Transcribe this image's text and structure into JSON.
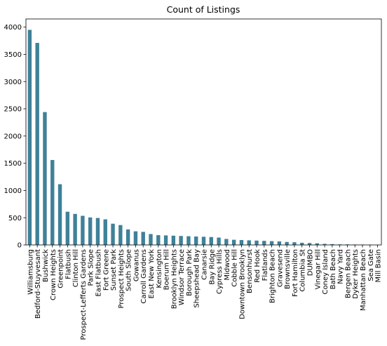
{
  "chart_data": {
    "type": "bar",
    "title": "Count of Listings",
    "xlabel": "",
    "ylabel": "",
    "ylim": [
      0,
      4150
    ],
    "yticks": [
      0,
      500,
      1000,
      1500,
      2000,
      2500,
      3000,
      3500,
      4000
    ],
    "grid": false,
    "bar_color": "#3f8198",
    "categories": [
      "Williamsburg",
      "Bedford-Stuyvesant",
      "Bushwick",
      "Crown Heights",
      "Greenpoint",
      "Flatbush",
      "Clinton Hill",
      "Prospect-Lefferts Gardens",
      "Park Slope",
      "East Flatbush",
      "Fort Greene",
      "Sunset Park",
      "Prospect Heights",
      "South Slope",
      "Gowanus",
      "Carroll Gardens",
      "East New York",
      "Kensington",
      "Boerum Hill",
      "Brooklyn Heights",
      "Windsor Terrace",
      "Borough Park",
      "Sheepshead Bay",
      "Canarsie",
      "Bay Ridge",
      "Cypress Hills",
      "Midwood",
      "Cobble Hill",
      "Downtown Brooklyn",
      "Bensonhurst",
      "Red Hook",
      "Flatlands",
      "Brighton Beach",
      "Gravesend",
      "Brownsville",
      "Fort Hamilton",
      "Columbia St",
      "DUMBO",
      "Vinegar Hill",
      "Coney Island",
      "Bath Beach",
      "Navy Yard",
      "Bergen Beach",
      "Dyker Heights",
      "Manhattan Beach",
      "Sea Gate",
      "Mill Basin"
    ],
    "values": [
      3950,
      3710,
      2440,
      1560,
      1115,
      610,
      570,
      535,
      505,
      495,
      470,
      390,
      365,
      285,
      250,
      240,
      200,
      180,
      175,
      170,
      165,
      160,
      155,
      150,
      145,
      135,
      110,
      95,
      90,
      85,
      80,
      75,
      70,
      65,
      55,
      50,
      40,
      35,
      30,
      20,
      15,
      10,
      10,
      8,
      7,
      6,
      4
    ]
  }
}
